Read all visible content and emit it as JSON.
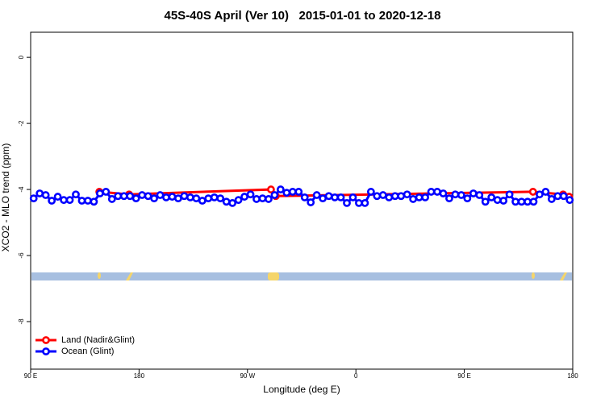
{
  "chart_data": {
    "type": "scatter",
    "title": "45S-40S April (Ver 10)   2015-01-01 to 2020-12-18",
    "x_label": "Longitude (deg E)",
    "y_label": "XCO2 - MLO trend (ppm)",
    "xlim": [
      90,
      540
    ],
    "xticks": [
      {
        "value": 90,
        "label": "90 E"
      },
      180,
      {
        "value": 270,
        "label": "90 W"
      },
      {
        "value": 360,
        "label": "0"
      },
      {
        "value": 450,
        "label": "90 E"
      },
      {
        "value": 540,
        "label": "180"
      }
    ],
    "ylim": [
      -9.44,
      0.76
    ],
    "yticks": [
      0,
      -2,
      -4,
      -6,
      -8
    ],
    "legend": "bottom-left",
    "series": [
      {
        "name": "Land (Nadir&Glint)",
        "color": "#ff0000",
        "x": [
          147,
          171.7,
          289.5,
          293.5,
          507,
          532,
          537
        ],
        "values": [
          -4.07,
          -4.15,
          -4.0,
          -4.2,
          -4.07,
          -4.15,
          -4.22
        ]
      },
      {
        "name": "Ocean (Glint)",
        "color": "#0000ff",
        "x": [
          92.5,
          97.5,
          102.5,
          107.5,
          112.5,
          117.5,
          122.5,
          127.5,
          132.5,
          137.5,
          142.5,
          147.5,
          152.5,
          157.5,
          162.5,
          167.5,
          172.5,
          177.5,
          182.5,
          187.5,
          192.5,
          197.5,
          202.5,
          207.5,
          212.5,
          217.5,
          222.5,
          227.5,
          232.5,
          237.5,
          242.5,
          247.5,
          252.5,
          257.5,
          262.5,
          267.5,
          272.5,
          277.5,
          282.5,
          287.5,
          292.5,
          297.5,
          302.5,
          307.5,
          312.5,
          317.5,
          322.5,
          327.5,
          332.5,
          337.5,
          342.5,
          347.5,
          352.5,
          357.5,
          362.5,
          367.5,
          372.5,
          377.5,
          382.5,
          387.5,
          392.5,
          397.5,
          402.5,
          407.5,
          412.5,
          417.5,
          422.5,
          427.5,
          432.5,
          437.5,
          442.5,
          447.5,
          452.5,
          457.5,
          462.5,
          467.5,
          472.5,
          477.5,
          482.5,
          487.5,
          492.5,
          497.5,
          502.5,
          507.5,
          512.5,
          517.5,
          522.5,
          527.5,
          532.5,
          537.5
        ],
        "values": [
          -4.27,
          -4.12,
          -4.17,
          -4.34,
          -4.22,
          -4.32,
          -4.32,
          -4.15,
          -4.34,
          -4.34,
          -4.37,
          -4.12,
          -4.07,
          -4.29,
          -4.2,
          -4.2,
          -4.2,
          -4.27,
          -4.17,
          -4.2,
          -4.27,
          -4.17,
          -4.24,
          -4.22,
          -4.27,
          -4.2,
          -4.24,
          -4.27,
          -4.34,
          -4.27,
          -4.24,
          -4.27,
          -4.37,
          -4.41,
          -4.32,
          -4.22,
          -4.15,
          -4.29,
          -4.27,
          -4.29,
          -4.17,
          -4.0,
          -4.1,
          -4.07,
          -4.07,
          -4.24,
          -4.39,
          -4.17,
          -4.27,
          -4.2,
          -4.24,
          -4.24,
          -4.41,
          -4.24,
          -4.41,
          -4.41,
          -4.07,
          -4.2,
          -4.17,
          -4.24,
          -4.2,
          -4.2,
          -4.15,
          -4.29,
          -4.24,
          -4.24,
          -4.07,
          -4.07,
          -4.12,
          -4.27,
          -4.15,
          -4.17,
          -4.27,
          -4.12,
          -4.17,
          -4.37,
          -4.24,
          -4.32,
          -4.34,
          -4.15,
          -4.37,
          -4.37,
          -4.37,
          -4.37,
          -4.15,
          -4.07,
          -4.29,
          -4.2,
          -4.2,
          -4.32
        ]
      }
    ]
  }
}
